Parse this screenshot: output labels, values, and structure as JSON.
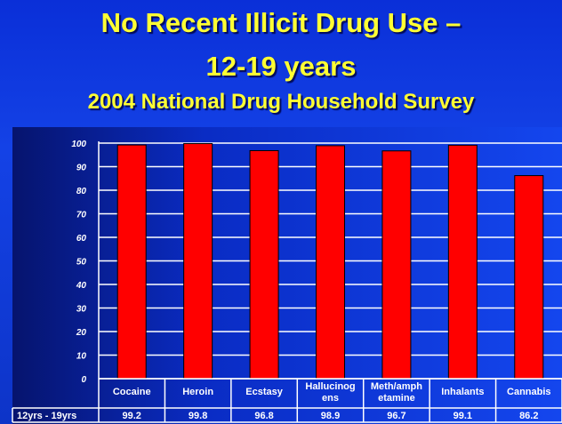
{
  "slide": {
    "title_line1": "No Recent Illicit Drug Use –",
    "title_line2": "12-19 years",
    "subtitle": "2004 National Drug Household Survey"
  },
  "colors": {
    "bar": "#ff0000",
    "grid": "#ffffff",
    "title": "#ffff33"
  },
  "chart_data": {
    "type": "bar",
    "categories": [
      [
        "Cocaine"
      ],
      [
        "Heroin"
      ],
      [
        "Ecstasy"
      ],
      [
        "Hallucinog",
        "ens"
      ],
      [
        "Meth/amph",
        "etamine"
      ],
      [
        "Inhalants"
      ],
      [
        "Cannabis"
      ]
    ],
    "series": [
      {
        "name": "12yrs - 19yrs",
        "values": [
          99.2,
          99.8,
          96.8,
          98.9,
          96.7,
          99.1,
          86.2
        ]
      }
    ],
    "value_labels": [
      "99.2",
      "99.8",
      "96.8",
      "98.9",
      "96.7",
      "99.1",
      "86.2"
    ],
    "ylim": [
      0,
      100
    ],
    "yticks": [
      0,
      10,
      20,
      30,
      40,
      50,
      60,
      70,
      80,
      90,
      100
    ],
    "grid": true,
    "data_table": true
  }
}
